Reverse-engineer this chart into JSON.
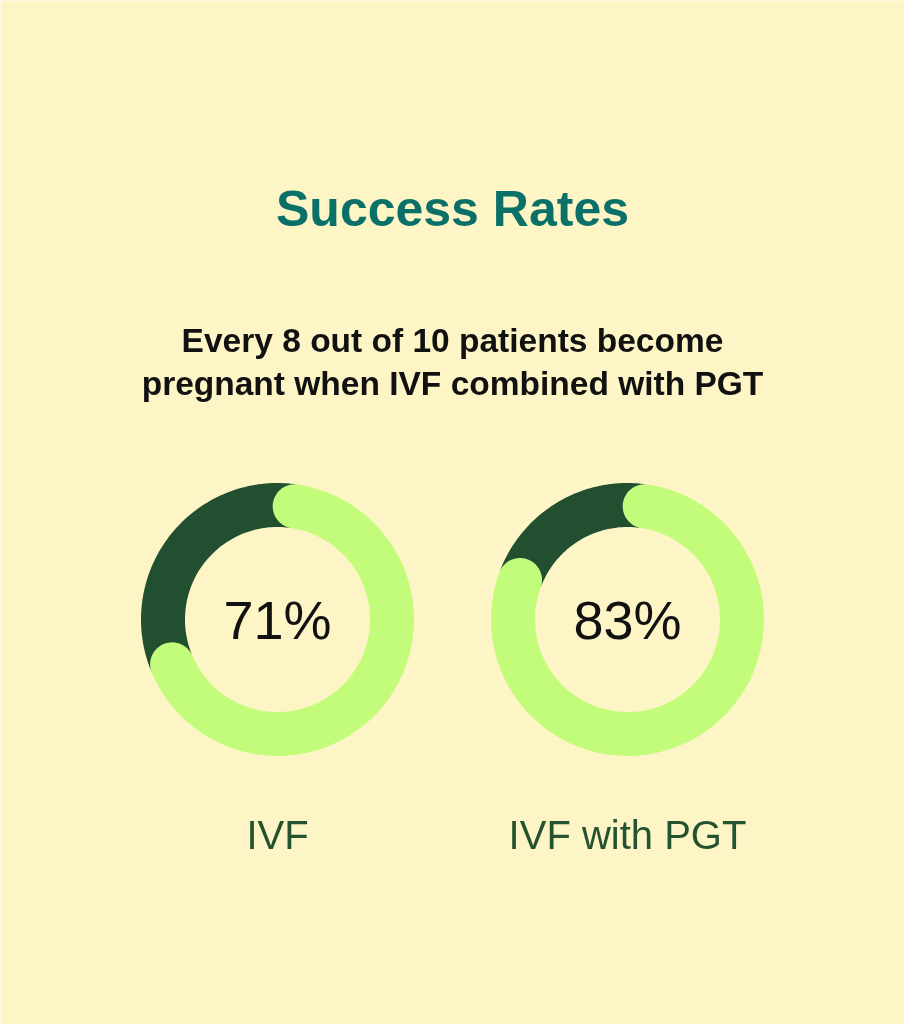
{
  "chart_data": [
    {
      "type": "donut",
      "title": "Success Rates",
      "subtitle": "Every 8 out of 10 patients become pregnant when IVF combined with PGT",
      "xlabel": "IVF",
      "categories": [
        null,
        null
      ],
      "values": [
        71,
        29
      ],
      "colors": [
        "#c3fc7a",
        "#224f2f"
      ],
      "value_labels": [
        "71%",
        null
      ]
    },
    {
      "type": "donut",
      "xlabel": "IVF with PGT",
      "categories": [
        null,
        null
      ],
      "values": [
        83,
        17
      ],
      "colors": [
        "#c3fc7a",
        "#224f2f"
      ],
      "value_labels": [
        "83%",
        null
      ]
    }
  ]
}
